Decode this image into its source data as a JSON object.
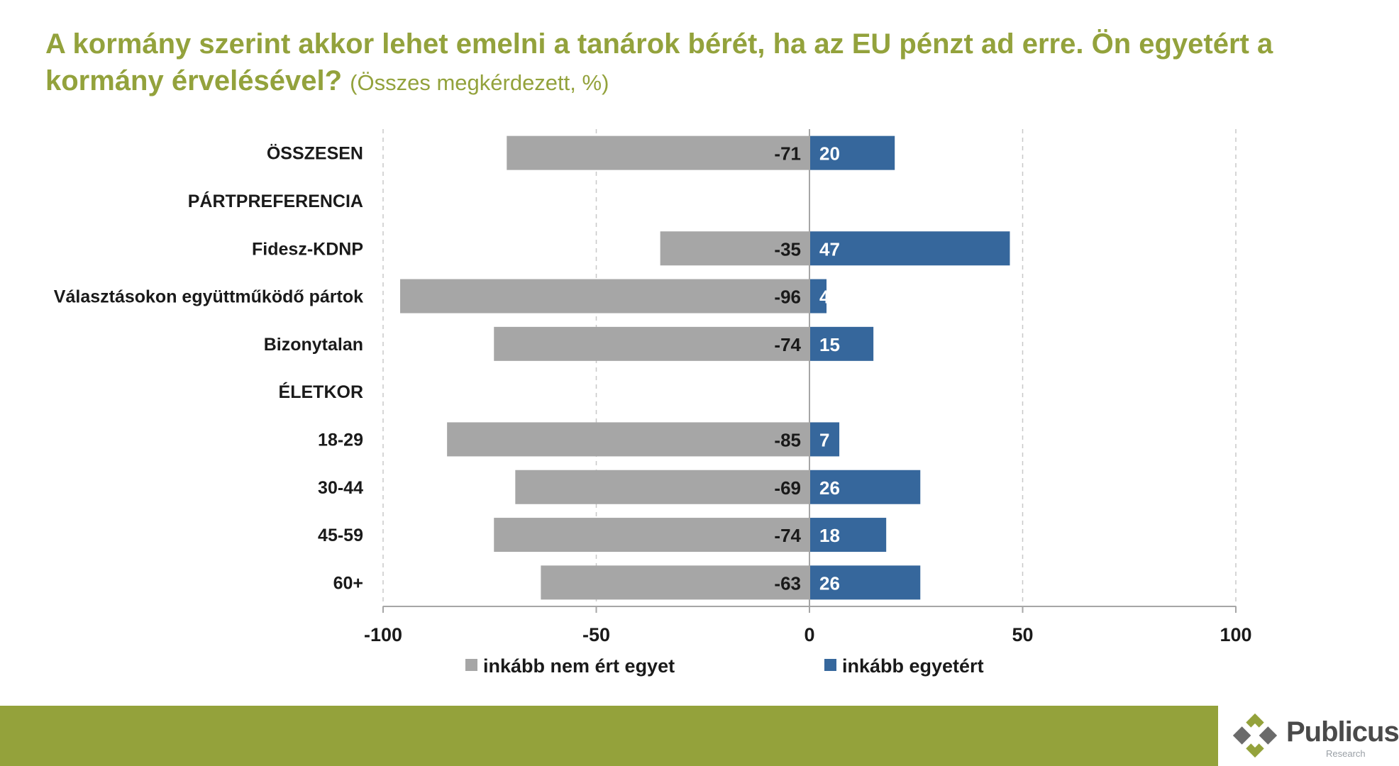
{
  "page": {
    "title_main": "A kormány szerint akkor lehet emelni a tanárok bérét, ha az EU pénzt ad erre. Ön egyetért a kormány érvelésével?",
    "title_sub": "(Összes megkérdezett, %)"
  },
  "logo": {
    "brand": "Publicus",
    "tagline": "Research"
  },
  "colors": {
    "title": "#93a23c",
    "disagree": "#a6a6a6",
    "agree": "#36679c",
    "footer": "#94a23b"
  },
  "chart_data": {
    "type": "bar",
    "orientation": "horizontal",
    "stacked": "diverging",
    "categories": [
      "ÖSSZESEN",
      "PÁRTPREFERENCIA",
      "Fidesz-KDNP",
      "Választásokon együttműködő pártok",
      "Bizonytalan",
      "ÉLETKOR",
      "18-29",
      "30-44",
      "45-59",
      "60+"
    ],
    "series": [
      {
        "name": "inkább nem ért egyet",
        "values": [
          -71,
          null,
          -35,
          -96,
          -74,
          null,
          -85,
          -69,
          -74,
          -63
        ]
      },
      {
        "name": "inkább egyetért",
        "values": [
          20,
          null,
          47,
          4,
          15,
          null,
          7,
          26,
          18,
          26
        ]
      }
    ],
    "xlim": [
      -100,
      100
    ],
    "xticks": [
      -100,
      -50,
      0,
      50,
      100
    ],
    "grid": "vertical-dashed",
    "legend": "bottom"
  }
}
